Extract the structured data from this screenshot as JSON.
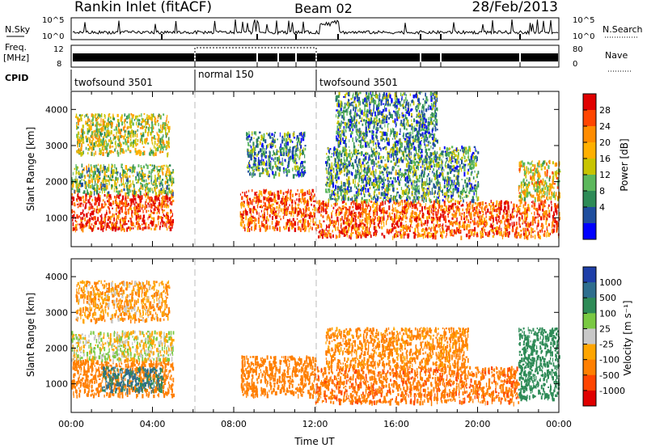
{
  "header": {
    "station": "Rankin Inlet (fitACF)",
    "beam": "Beam 02",
    "date": "28/Feb/2013"
  },
  "strips": {
    "nsky_label": "N.Sky",
    "nsky_ticks": [
      "10^5",
      "10^0"
    ],
    "nsearch_label": "N.Search",
    "nsearch_ticks": [
      "10^5",
      "10^0"
    ],
    "freq_label_1": "Freq.",
    "freq_label_2": "[MHz]",
    "freq_ticks": [
      "12",
      "8"
    ],
    "nave_label": "Nave",
    "nave_ticks": [
      "80",
      "0"
    ],
    "cpid_label": "CPID",
    "cpid_segments": [
      {
        "label": "twofsound 3501",
        "start_hour": 0,
        "end_hour": 6
      },
      {
        "label": "normal 150",
        "start_hour": 6,
        "end_hour": 12
      },
      {
        "label": "twofsound 3501",
        "start_hour": 12,
        "end_hour": 24
      }
    ]
  },
  "chart_data": [
    {
      "type": "heatmap",
      "panel": "power",
      "xlabel": "",
      "ylabel": "Slant Range [km]",
      "xlim": [
        0,
        24
      ],
      "ylim": [
        200,
        4500
      ],
      "y_ticks": [
        1000,
        2000,
        3000,
        4000
      ],
      "colorbar_label": "Power [dB]",
      "colorbar_ticks": [
        "28",
        "24",
        "20",
        "16",
        "12",
        "8",
        "4"
      ],
      "colorbar_colors": [
        "#e00000",
        "#ff4500",
        "#ff8c00",
        "#ffb000",
        "#c8c400",
        "#5cb85c",
        "#2e8b57",
        "#1f4e9e",
        "#0000ff"
      ],
      "mode_boundaries_hours": [
        6,
        12
      ],
      "regions": [
        {
          "start_hour": 0.0,
          "end_hour": 5.0,
          "range_from": 700,
          "range_to": 1700,
          "value": 28
        },
        {
          "start_hour": 0.0,
          "end_hour": 5.0,
          "range_from": 1700,
          "range_to": 2500,
          "value": 14
        },
        {
          "start_hour": 0.2,
          "end_hour": 4.8,
          "range_from": 2800,
          "range_to": 3900,
          "value": 16
        },
        {
          "start_hour": 8.3,
          "end_hour": 12.0,
          "range_from": 700,
          "range_to": 1800,
          "value": 26
        },
        {
          "start_hour": 8.6,
          "end_hour": 11.5,
          "range_from": 2200,
          "range_to": 3400,
          "value": 9
        },
        {
          "start_hour": 12.0,
          "end_hour": 24.0,
          "range_from": 500,
          "range_to": 1500,
          "value": 26
        },
        {
          "start_hour": 12.5,
          "end_hour": 20.0,
          "range_from": 1500,
          "range_to": 3000,
          "value": 10
        },
        {
          "start_hour": 13.0,
          "end_hour": 18.0,
          "range_from": 3000,
          "range_to": 4500,
          "value": 9
        },
        {
          "start_hour": 22.0,
          "end_hour": 24.0,
          "range_from": 1500,
          "range_to": 2600,
          "value": 18
        }
      ]
    },
    {
      "type": "heatmap",
      "panel": "velocity",
      "xlabel": "Time UT",
      "ylabel": "Slant Range [km]",
      "xlim": [
        0,
        24
      ],
      "ylim": [
        200,
        4500
      ],
      "x_ticks": [
        "00:00",
        "04:00",
        "08:00",
        "12:00",
        "16:00",
        "20:00",
        "00:00"
      ],
      "y_ticks": [
        1000,
        2000,
        3000,
        4000
      ],
      "colorbar_label": "Velocity [m s⁻¹]",
      "colorbar_ticks": [
        "1000",
        "500",
        "100",
        "25",
        "-25",
        "-100",
        "-500",
        "-1000"
      ],
      "colorbar_colors": [
        "#1e3fa8",
        "#2e6e8e",
        "#2e8b57",
        "#7ac943",
        "#c8c8c8",
        "#ffa500",
        "#ff7f00",
        "#ff4500",
        "#e00000"
      ],
      "mode_boundaries_hours": [
        6,
        12
      ],
      "regions": [
        {
          "start_hour": 0.0,
          "end_hour": 5.0,
          "range_from": 700,
          "range_to": 1700,
          "value": -200
        },
        {
          "start_hour": 1.5,
          "end_hour": 4.5,
          "range_from": 800,
          "range_to": 1500,
          "value": 600
        },
        {
          "start_hour": 0.0,
          "end_hour": 5.0,
          "range_from": 1700,
          "range_to": 2500,
          "value": 0
        },
        {
          "start_hour": 0.2,
          "end_hour": 4.8,
          "range_from": 2800,
          "range_to": 3900,
          "value": -100
        },
        {
          "start_hour": 8.3,
          "end_hour": 12.0,
          "range_from": 700,
          "range_to": 1800,
          "value": -300
        },
        {
          "start_hour": 12.0,
          "end_hour": 22.0,
          "range_from": 500,
          "range_to": 1500,
          "value": -400
        },
        {
          "start_hour": 12.5,
          "end_hour": 19.5,
          "range_from": 1500,
          "range_to": 2600,
          "value": -150
        },
        {
          "start_hour": 22.0,
          "end_hour": 24.0,
          "range_from": 600,
          "range_to": 2600,
          "value": 300
        }
      ]
    }
  ]
}
